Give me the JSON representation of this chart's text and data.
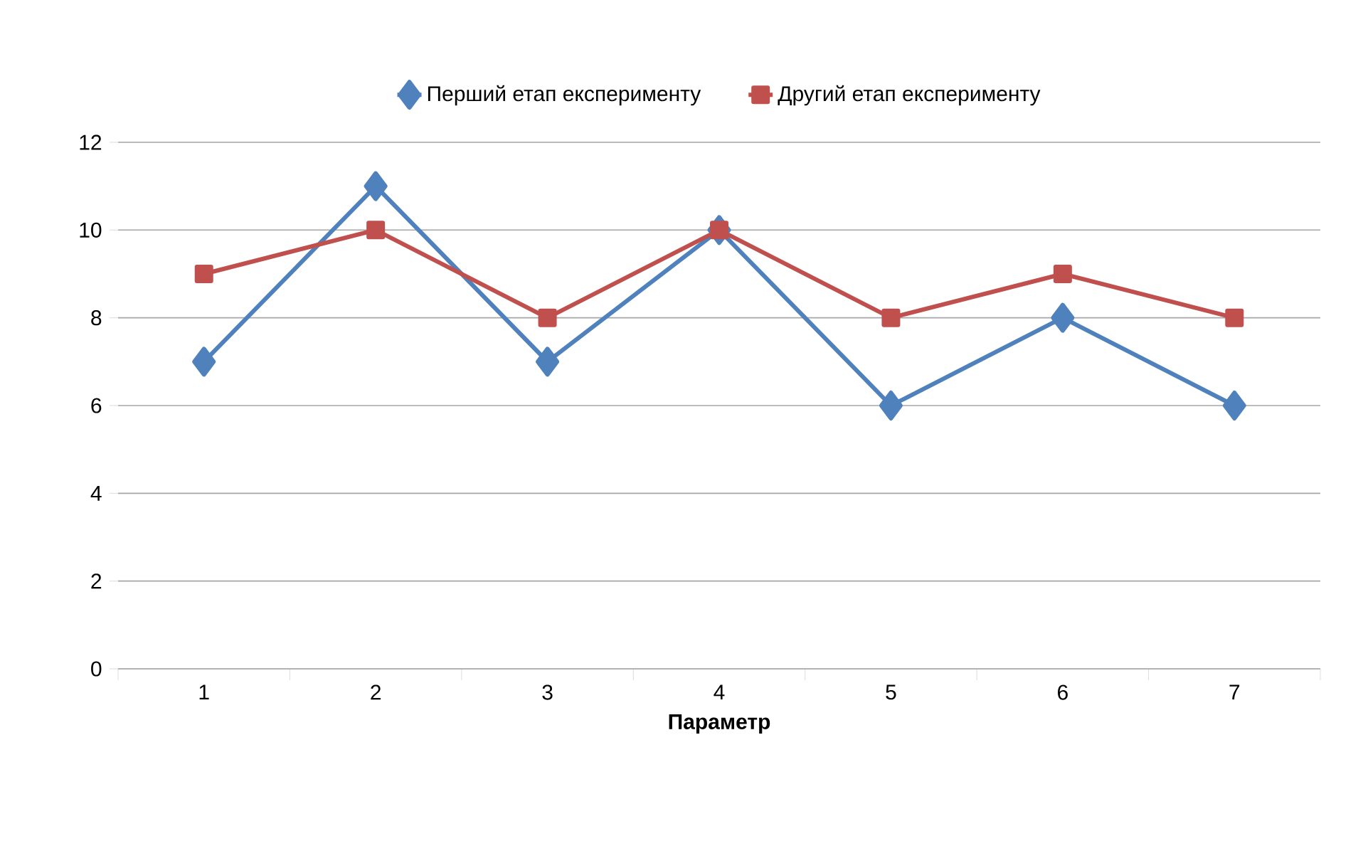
{
  "chart_data": {
    "type": "line",
    "xlabel": "Параметр",
    "categories": [
      "1",
      "2",
      "3",
      "4",
      "5",
      "6",
      "7"
    ],
    "series": [
      {
        "name": "Перший етап експерименту",
        "color": "#4f81bd",
        "marker": "diamond",
        "values": [
          7,
          11,
          7,
          10,
          6,
          8,
          6
        ]
      },
      {
        "name": "Другий етап експерименту",
        "color": "#c0504d",
        "marker": "square",
        "values": [
          9,
          10,
          8,
          10,
          8,
          9,
          8
        ]
      }
    ],
    "ylim": [
      0,
      12
    ],
    "yticks": [
      0,
      2,
      4,
      6,
      8,
      10,
      12
    ],
    "grid": "y",
    "legend": "top",
    "line_style": "solid"
  }
}
